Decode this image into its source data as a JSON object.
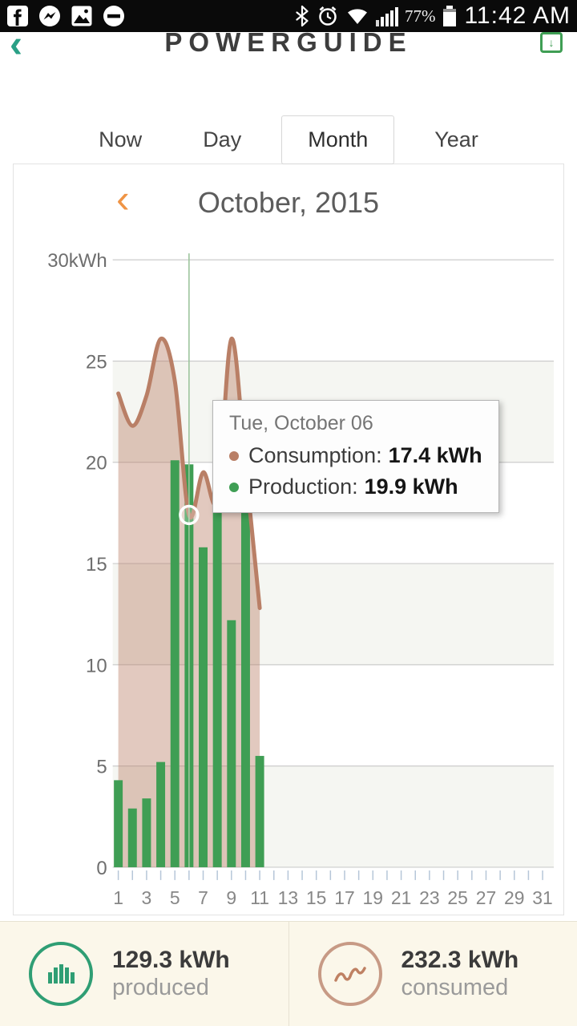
{
  "status_bar": {
    "time": "11:42 AM",
    "battery_percent": "77%"
  },
  "header": {
    "title": "POWERGUIDE"
  },
  "tabs": {
    "items": [
      {
        "label": "Now",
        "selected": false
      },
      {
        "label": "Day",
        "selected": false
      },
      {
        "label": "Month",
        "selected": true
      },
      {
        "label": "Year",
        "selected": false
      }
    ]
  },
  "month_nav": {
    "title": "October, 2015"
  },
  "chart_data": {
    "type": "bar+area-line",
    "title": "October, 2015",
    "ylim": [
      0,
      30
    ],
    "y_ticks": [
      0,
      5,
      10,
      15,
      20,
      25,
      30
    ],
    "y_tick_labels": [
      "0",
      "5",
      "10",
      "15",
      "20",
      "25",
      "30kWh"
    ],
    "x_range": [
      1,
      31
    ],
    "x_tick_labels": [
      "1",
      "3",
      "5",
      "7",
      "9",
      "11",
      "13",
      "15",
      "17",
      "19",
      "21",
      "23",
      "25",
      "27",
      "29",
      "31"
    ],
    "days": [
      1,
      2,
      3,
      4,
      5,
      6,
      7,
      8,
      9,
      10,
      11
    ],
    "series": [
      {
        "name": "Production",
        "type": "bar",
        "color": "#3f9e54",
        "values": [
          4.3,
          2.9,
          3.4,
          5.2,
          20.1,
          19.9,
          15.8,
          18.6,
          12.2,
          21.4,
          5.5
        ]
      },
      {
        "name": "Consumption",
        "type": "area-line",
        "color": "#b97f66",
        "fill": "rgba(185,127,102,0.42)",
        "values": [
          23.4,
          21.8,
          23.3,
          26.1,
          24.0,
          17.4,
          19.5,
          18.2,
          26.1,
          19.7,
          12.8
        ]
      }
    ],
    "highlight": {
      "day": 6,
      "label": "Tue, October 06",
      "consumption": 17.4,
      "production": 19.9
    },
    "grid": true,
    "legend_position": "none"
  },
  "tooltip": {
    "title": "Tue, October 06",
    "consumption_label": "Consumption:",
    "consumption_value": "17.4 kWh",
    "production_label": "Production:",
    "production_value": "19.9 kWh"
  },
  "summary": {
    "produced": {
      "value": "129.3 kWh",
      "label": "produced"
    },
    "consumed": {
      "value": "232.3 kWh",
      "label": "consumed"
    }
  },
  "colors": {
    "production_green": "#3f9e54",
    "consumption_terracotta": "#b97f66",
    "accent_orange": "#ef9445",
    "footer_cream": "#fbf7ea"
  }
}
